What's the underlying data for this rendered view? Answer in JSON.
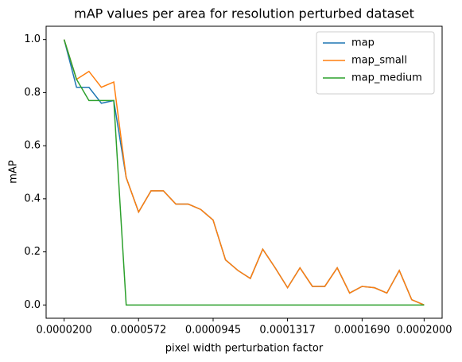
{
  "chart_data": {
    "type": "line",
    "title": "mAP values per area for resolution perturbed dataset",
    "xlabel": "pixel width perturbation factor",
    "ylabel": "mAP",
    "x": [
      2e-05,
      2.62069e-05,
      3.24138e-05,
      3.86207e-05,
      4.48276e-05,
      5.10345e-05,
      5.72414e-05,
      6.34483e-05,
      6.96552e-05,
      7.58621e-05,
      8.2069e-05,
      8.82759e-05,
      9.44828e-05,
      0.0001006897,
      0.0001068966,
      0.0001131034,
      0.0001193103,
      0.0001255172,
      0.0001317241,
      0.000137931,
      0.0001441379,
      0.0001503448,
      0.0001565517,
      0.0001627586,
      0.0001689655,
      0.0001751724,
      0.0001813793,
      0.0001875862,
      0.0001937931,
      0.0002
    ],
    "series": [
      {
        "name": "map",
        "color": "#1f77b4",
        "values": [
          1.0,
          0.82,
          0.82,
          0.76,
          0.77,
          0.48,
          0.35,
          0.43,
          0.43,
          0.38,
          0.38,
          0.36,
          0.32,
          0.17,
          0.13,
          0.1,
          0.21,
          0.14,
          0.065,
          0.14,
          0.07,
          0.07,
          0.14,
          0.045,
          0.07,
          0.065,
          0.045,
          0.13,
          0.02,
          0.0
        ]
      },
      {
        "name": "map_small",
        "color": "#ff7f0e",
        "values": [
          1.0,
          0.85,
          0.88,
          0.82,
          0.84,
          0.48,
          0.35,
          0.43,
          0.43,
          0.38,
          0.38,
          0.36,
          0.32,
          0.17,
          0.13,
          0.1,
          0.21,
          0.14,
          0.065,
          0.14,
          0.07,
          0.07,
          0.14,
          0.045,
          0.07,
          0.065,
          0.045,
          0.13,
          0.02,
          0.0
        ]
      },
      {
        "name": "map_medium",
        "color": "#2ca02c",
        "values": [
          1.0,
          0.85,
          0.77,
          0.77,
          0.77,
          0.0,
          0.0,
          0.0,
          0.0,
          0.0,
          0.0,
          0.0,
          0.0,
          0.0,
          0.0,
          0.0,
          0.0,
          0.0,
          0.0,
          0.0,
          0.0,
          0.0,
          0.0,
          0.0,
          0.0,
          0.0,
          0.0,
          0.0,
          0.0,
          0.0
        ]
      }
    ],
    "xlim": [
      1.1e-05,
      0.000209
    ],
    "ylim": [
      -0.05,
      1.05
    ],
    "xticks": [
      {
        "value": 2e-05,
        "label": "0.0000200"
      },
      {
        "value": 5.72e-05,
        "label": "0.0000572"
      },
      {
        "value": 9.45e-05,
        "label": "0.0000945"
      },
      {
        "value": 0.0001317,
        "label": "0.0001317"
      },
      {
        "value": 0.000169,
        "label": "0.0001690"
      },
      {
        "value": 0.0002,
        "label": "0.0002000"
      }
    ],
    "yticks": [
      {
        "value": 0,
        "label": "0.0"
      },
      {
        "value": 0.2,
        "label": "0.2"
      },
      {
        "value": 0.4,
        "label": "0.4"
      },
      {
        "value": 0.6,
        "label": "0.6"
      },
      {
        "value": 0.8,
        "label": "0.8"
      },
      {
        "value": 1,
        "label": "1.0"
      }
    ],
    "legend": "upper right",
    "grid": false
  }
}
